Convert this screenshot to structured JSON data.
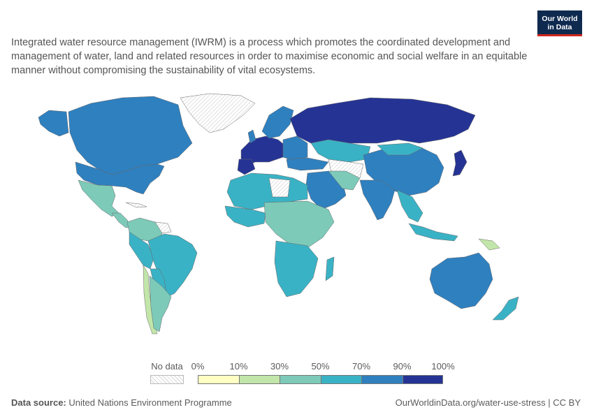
{
  "header": {
    "subtitle": "Integrated water resource management (IWRM) is a process which promotes the coordinated development and management of water, land and related resources in order to maximise economic and social welfare in an equitable manner without compromising the sustainability of vital ecosystems.",
    "logo_line1": "Our World",
    "logo_line2": "in Data"
  },
  "legend": {
    "no_data_label": "No data",
    "ticks": [
      "0%",
      "10%",
      "30%",
      "50%",
      "70%",
      "90%",
      "100%"
    ],
    "bins": [
      {
        "from": 0,
        "to": 10,
        "color": "#ffffc4"
      },
      {
        "from": 10,
        "to": 30,
        "color": "#c2e6a9"
      },
      {
        "from": 30,
        "to": 50,
        "color": "#7dcab9"
      },
      {
        "from": 50,
        "to": 70,
        "color": "#3ab2c5"
      },
      {
        "from": 70,
        "to": 90,
        "color": "#2f80bf"
      },
      {
        "from": 90,
        "to": 100,
        "color": "#253494"
      }
    ]
  },
  "footer": {
    "source_label": "Data source:",
    "source_value": "United Nations Environment Programme",
    "url": "OurWorldinData.org/water-use-stress | CC BY"
  },
  "colors": {
    "no_data_hatch": "#d6d6d6",
    "border": "#666666",
    "logo_bg": "#0f2a4f",
    "logo_accent": "#ce261e"
  }
}
